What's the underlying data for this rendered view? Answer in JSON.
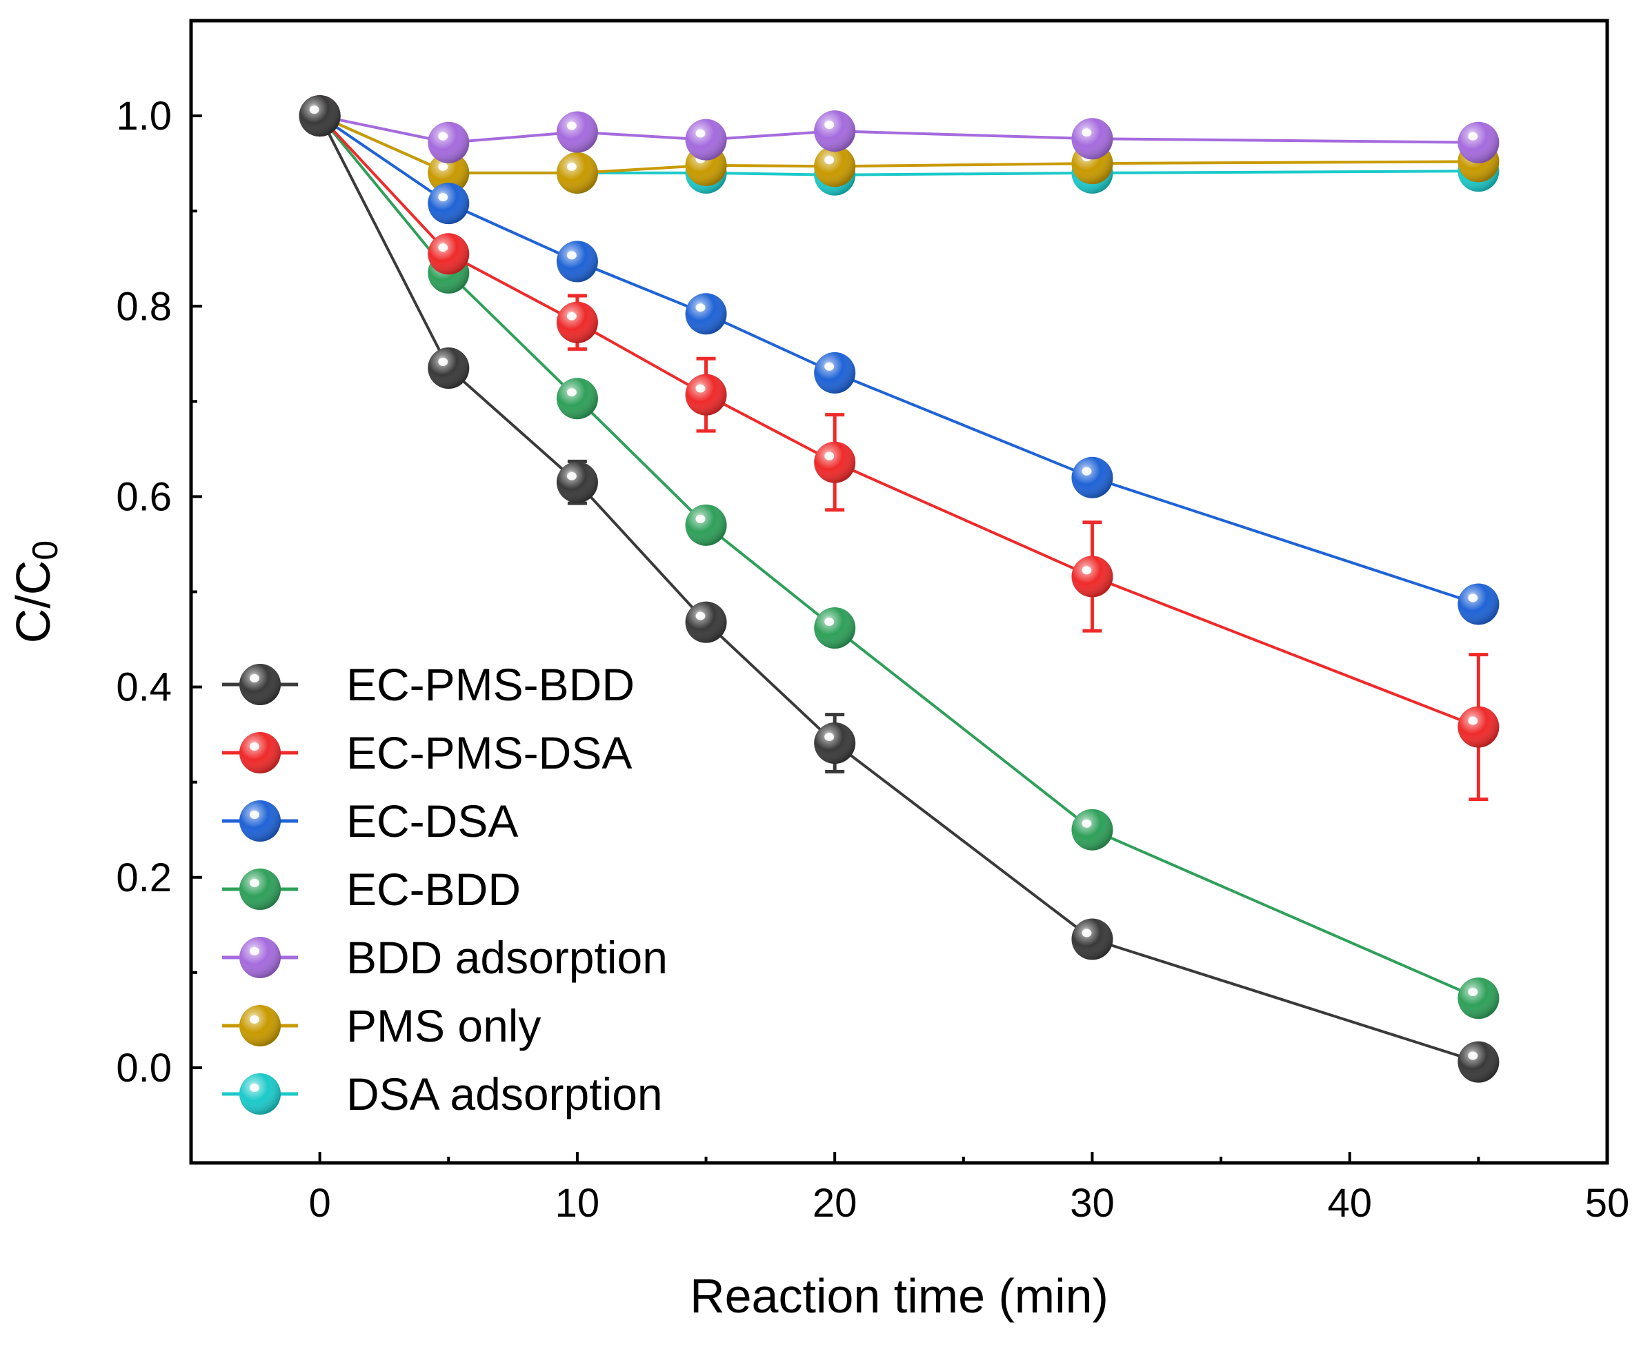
{
  "chart_data": {
    "type": "line",
    "title": "",
    "xlabel": "Reaction time (min)",
    "ylabel": {
      "main": "C/C",
      "sub": "0"
    },
    "xlim": [
      -5,
      50
    ],
    "ylim": [
      -0.1,
      1.1
    ],
    "xticks": [
      0,
      10,
      20,
      30,
      40,
      50
    ],
    "yticks": [
      0.0,
      0.2,
      0.4,
      0.6,
      0.8,
      1.0
    ],
    "ytick_labels": [
      "0.0",
      "0.2",
      "0.4",
      "0.6",
      "0.8",
      "1.0"
    ],
    "grid": false,
    "legend_position": "bottom-left",
    "x": [
      0,
      5,
      10,
      15,
      20,
      30,
      45
    ],
    "series": [
      {
        "name": "EC-PMS-BDD",
        "color": "#3a3a3a",
        "values": [
          1.0,
          0.735,
          0.615,
          0.468,
          0.341,
          0.135,
          0.006
        ],
        "errors": [
          0,
          0.012,
          0.022,
          0.012,
          0.03,
          0.012,
          0.01
        ]
      },
      {
        "name": "EC-PMS-DSA",
        "color": "#ef2a2a",
        "values": [
          1.0,
          0.855,
          0.783,
          0.707,
          0.636,
          0.516,
          0.358
        ],
        "errors": [
          0,
          0.01,
          0.028,
          0.038,
          0.05,
          0.057,
          0.076
        ]
      },
      {
        "name": "EC-DSA",
        "color": "#1f63d6",
        "values": [
          1.0,
          0.908,
          0.847,
          0.792,
          0.73,
          0.62,
          0.487
        ],
        "errors": [
          0,
          0.008,
          0.008,
          0.008,
          0.008,
          0.008,
          0.008
        ]
      },
      {
        "name": "EC-BDD",
        "color": "#2fa05a",
        "values": [
          1.0,
          0.835,
          0.703,
          0.57,
          0.462,
          0.25,
          0.073
        ],
        "errors": [
          0,
          0.008,
          0.008,
          0.008,
          0.008,
          0.01,
          0.008
        ]
      },
      {
        "name": "BDD adsorption",
        "color": "#a56bdd",
        "values": [
          1.0,
          0.972,
          0.983,
          0.975,
          0.984,
          0.976,
          0.972
        ],
        "errors": [
          0,
          0.006,
          0.006,
          0.006,
          0.006,
          0.006,
          0.006
        ]
      },
      {
        "name": "PMS only",
        "color": "#c89a00",
        "values": [
          1.0,
          0.94,
          0.94,
          0.948,
          0.947,
          0.95,
          0.952
        ],
        "errors": [
          0,
          0.006,
          0.006,
          0.006,
          0.006,
          0.006,
          0.006
        ]
      },
      {
        "name": "DSA adsorption",
        "color": "#1cc9c9",
        "values": [
          1.0,
          0.94,
          0.94,
          0.94,
          0.938,
          0.94,
          0.942
        ],
        "errors": [
          0,
          0.006,
          0.006,
          0.006,
          0.006,
          0.006,
          0.006
        ]
      }
    ]
  }
}
